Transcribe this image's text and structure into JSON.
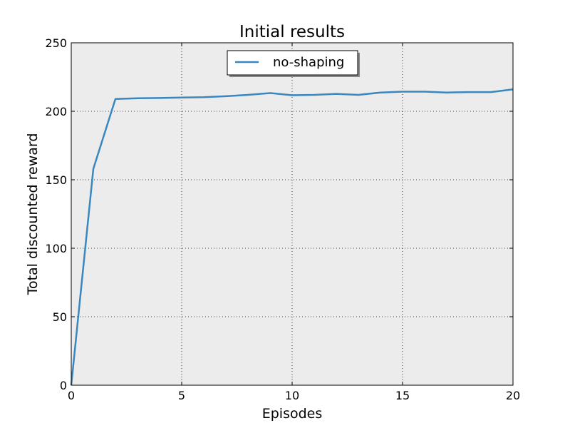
{
  "chart_data": {
    "type": "line",
    "title": "Initial results",
    "xlabel": "Episodes",
    "ylabel": "Total discounted reward",
    "xlim": [
      0,
      20
    ],
    "ylim": [
      0,
      250
    ],
    "xticks": [
      0,
      5,
      10,
      15,
      20
    ],
    "yticks": [
      0,
      50,
      100,
      150,
      200,
      250
    ],
    "grid": true,
    "legend_position": "top-center",
    "background": "#ececec",
    "series": [
      {
        "name": "no-shaping",
        "color": "#3a87c0",
        "x": [
          0,
          1,
          2,
          3,
          4,
          5,
          6,
          7,
          8,
          9,
          10,
          11,
          12,
          13,
          14,
          15,
          16,
          17,
          18,
          19,
          20
        ],
        "y": [
          0,
          158,
          209,
          209.5,
          209.7,
          210,
          210.3,
          211,
          212,
          213.3,
          211.7,
          212,
          212.7,
          212,
          213.7,
          214.3,
          214.3,
          213.7,
          214,
          214,
          216
        ]
      }
    ]
  }
}
